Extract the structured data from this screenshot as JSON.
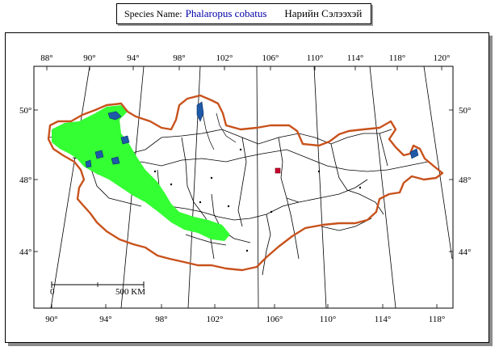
{
  "species": {
    "label": "Species Name:",
    "scientific_name": "Phalaropus cobatus",
    "local_name": "Нарийн Сэлээхэй"
  },
  "map": {
    "top_longitudes": [
      "88°",
      "90°",
      "94°",
      "98°",
      "102°",
      "106°",
      "110°",
      "114°",
      "118°",
      "120°"
    ],
    "bottom_longitudes": [
      "90°",
      "94°",
      "98°",
      "102°",
      "106°",
      "110°",
      "114°",
      "118°"
    ],
    "left_latitudes": [
      "50°",
      "48°",
      "44°"
    ],
    "right_latitudes": [
      "50°",
      "48°",
      "44°"
    ],
    "scale_bar": {
      "start": "0",
      "end": "500 KM"
    },
    "colors": {
      "border": "#c8521c",
      "range": "#33ff33",
      "water": "#1e5aa8",
      "provinces": "#000000",
      "marker": "#cc0033"
    }
  }
}
